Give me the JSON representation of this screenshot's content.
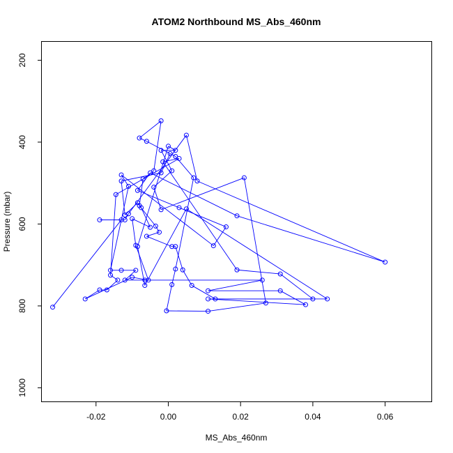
{
  "chart_data": {
    "type": "line",
    "title": "ATOM2 Northbound MS_Abs_460nm",
    "xlabel": "MS_Abs_460nm",
    "ylabel": "Pressure (mbar)",
    "xlim": [
      -0.035,
      0.073
    ],
    "ylim": [
      1035,
      155
    ],
    "y_inverted": true,
    "x_ticks": [
      -0.02,
      0.0,
      0.02,
      0.04,
      0.06
    ],
    "x_tick_labels": [
      "-0.02",
      "0.00",
      "0.02",
      "0.04",
      "0.06"
    ],
    "y_ticks": [
      200,
      400,
      600,
      800,
      1000
    ],
    "y_tick_labels": [
      "200",
      "400",
      "600",
      "800",
      "1000"
    ],
    "grid": false,
    "series_color": "#0000ff",
    "series": [
      {
        "points": [
          [
            -0.032,
            803
          ],
          [
            -0.013,
            590
          ],
          [
            -0.019,
            590
          ],
          [
            -0.012,
            590
          ],
          [
            -0.011,
            575
          ],
          [
            0.005,
            383
          ],
          [
            0.008,
            495
          ],
          [
            0.06,
            693
          ],
          [
            0.019,
            580
          ],
          [
            -0.005,
            475
          ],
          [
            -0.0085,
            518
          ],
          [
            0.003,
            560
          ],
          [
            0.016,
            607
          ],
          [
            0.0125,
            653
          ],
          [
            -0.013,
            480
          ],
          [
            -0.011,
            508
          ],
          [
            -0.016,
            713
          ],
          [
            -0.013,
            713
          ],
          [
            -0.009,
            713
          ],
          [
            -0.012,
            737
          ],
          [
            -0.0065,
            737
          ],
          [
            0.026,
            737
          ],
          [
            0.011,
            763
          ],
          [
            0.031,
            763
          ],
          [
            0.038,
            797
          ],
          [
            0.011,
            783
          ],
          [
            0.044,
            783
          ],
          [
            0.005,
            563
          ],
          [
            -0.0065,
            750
          ],
          [
            -0.0085,
            655
          ],
          [
            0.0,
            410
          ],
          [
            0.002,
            420
          ],
          [
            -0.002,
            420
          ],
          [
            0.001,
            470
          ],
          [
            -0.004,
            510
          ],
          [
            -0.002,
            565
          ],
          [
            0.021,
            487
          ],
          [
            0.027,
            793
          ],
          [
            0.011,
            813
          ],
          [
            -0.0005,
            812
          ],
          [
            0.001,
            748
          ],
          [
            0.002,
            710
          ],
          [
            0.007,
            487
          ],
          [
            0.002,
            435
          ],
          [
            -0.006,
            398
          ],
          [
            -0.008,
            390
          ],
          [
            -0.002,
            348
          ],
          [
            -0.004,
            470
          ],
          [
            -0.007,
            490
          ],
          [
            -0.008,
            555
          ],
          [
            -0.0035,
            605
          ],
          [
            -0.0025,
            620
          ],
          [
            -0.006,
            630
          ],
          [
            0.001,
            655
          ],
          [
            0.002,
            655
          ],
          [
            0.004,
            712
          ],
          [
            0.0065,
            750
          ],
          [
            0.013,
            783
          ],
          [
            0.04,
            783
          ],
          [
            0.031,
            722
          ],
          [
            0.019,
            712
          ],
          [
            -0.0015,
            448
          ],
          [
            0.003,
            440
          ],
          [
            -0.0145,
            528
          ],
          [
            -0.016,
            725
          ],
          [
            -0.014,
            737
          ],
          [
            -0.017,
            761
          ],
          [
            -0.019,
            761
          ],
          [
            -0.023,
            783
          ],
          [
            -0.01,
            730
          ],
          [
            -0.0055,
            737
          ],
          [
            -0.009,
            652
          ],
          [
            -0.01,
            587
          ],
          [
            -0.005,
            608
          ],
          [
            -0.0075,
            560
          ],
          [
            -0.0085,
            548
          ],
          [
            -0.012,
            578
          ],
          [
            -0.013,
            495
          ],
          [
            -0.002,
            475
          ],
          [
            0.0005,
            428
          ]
        ]
      }
    ],
    "points_are_approximate": true
  }
}
